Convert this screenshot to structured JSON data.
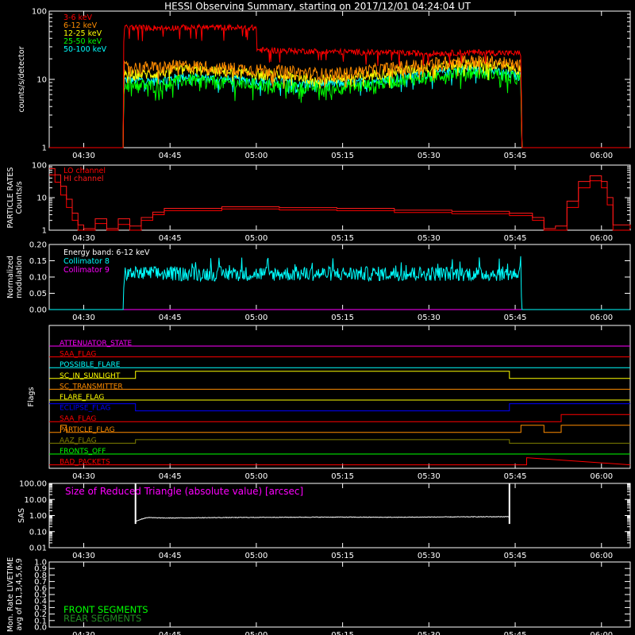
{
  "title": "HESSI Observing Summary, starting on 2017/12/01 04:24:04 UT",
  "time_axis": {
    "ticks": [
      {
        "t": 6,
        "label": "04:30"
      },
      {
        "t": 21,
        "label": "04:45"
      },
      {
        "t": 36,
        "label": "05:00"
      },
      {
        "t": 51,
        "label": "05:15"
      },
      {
        "t": 66,
        "label": "05:30"
      },
      {
        "t": 81,
        "label": "05:45"
      },
      {
        "t": 96,
        "label": "06:00"
      }
    ],
    "range_minutes": [
      0,
      101
    ]
  },
  "chart_data": [
    {
      "type": "line",
      "panel": "count-rates",
      "ylabel": "counts/s/detector",
      "yscale": "log",
      "ylim": [
        1,
        100
      ],
      "ytick_labels": [
        "1",
        "10",
        "100"
      ],
      "x_units": "minutes after 04:24:04 UT",
      "series": [
        {
          "name": "3-6 keV",
          "color": "#ff0000",
          "x": [
            0,
            12.9,
            13.0,
            18,
            27,
            36,
            36.1,
            45,
            55,
            65,
            75,
            82,
            82.1,
            101
          ],
          "y": [
            1,
            1,
            58,
            57,
            58,
            57,
            27,
            26,
            25,
            24,
            25,
            24,
            1,
            1
          ]
        },
        {
          "name": "6-12 keV",
          "color": "#ff8c00",
          "x": [
            0,
            12.9,
            13.0,
            18,
            24,
            30,
            36,
            42,
            48,
            54,
            60,
            66,
            72,
            78,
            82,
            82.1,
            101
          ],
          "y": [
            1,
            1,
            15,
            15,
            16,
            15,
            14,
            13,
            12,
            13,
            15,
            17,
            19,
            18,
            16,
            1,
            1
          ]
        },
        {
          "name": "12-25 keV",
          "color": "#ffff00",
          "x": [
            0,
            12.9,
            13.0,
            18,
            24,
            30,
            36,
            42,
            48,
            54,
            60,
            66,
            72,
            78,
            82,
            82.1,
            101
          ],
          "y": [
            1,
            1,
            12,
            12,
            14,
            13,
            12,
            11,
            10,
            11,
            13,
            15,
            17,
            16,
            14,
            1,
            1
          ]
        },
        {
          "name": "25-50 keV",
          "color": "#00ff00",
          "x": [
            0,
            12.9,
            13.0,
            18,
            24,
            30,
            36,
            42,
            48,
            54,
            60,
            66,
            72,
            78,
            82,
            82.1,
            101
          ],
          "y": [
            1,
            1,
            9,
            8,
            10,
            9,
            8.5,
            8,
            7.5,
            8,
            9.5,
            11,
            13,
            12,
            10,
            1,
            1
          ]
        },
        {
          "name": "50-100 keV",
          "color": "#00ffff",
          "x": [
            0,
            12.9,
            13.0,
            18,
            24,
            30,
            36,
            42,
            48,
            54,
            60,
            66,
            72,
            78,
            82,
            82.1,
            101
          ],
          "y": [
            1,
            1,
            10,
            9.5,
            11,
            10,
            9.5,
            9,
            8.5,
            9,
            10.5,
            12,
            14,
            13,
            11,
            1,
            1
          ]
        }
      ]
    },
    {
      "type": "line",
      "panel": "particle-rates",
      "ylabel": "PARTICLE RATES Counts/s",
      "yscale": "log",
      "ylim": [
        1,
        100
      ],
      "ytick_labels": [
        "1",
        "10",
        "100"
      ],
      "x_units": "minutes after 04:24:04 UT",
      "series": [
        {
          "name": "LO channel",
          "color": "#ff0000",
          "x": [
            0,
            1,
            2,
            3,
            4,
            5,
            6,
            8,
            10,
            12,
            14,
            16,
            18,
            20,
            30,
            40,
            50,
            60,
            70,
            80,
            84,
            86,
            88,
            90,
            92,
            94,
            96,
            97,
            98,
            101
          ],
          "y": [
            50,
            30,
            12,
            5,
            2,
            1,
            1,
            1.6,
            1,
            1.5,
            1,
            2,
            3,
            4,
            4.5,
            4.2,
            4,
            3.5,
            3.2,
            2.8,
            2,
            1,
            1,
            5,
            20,
            33,
            20,
            6,
            1,
            1
          ]
        },
        {
          "name": "HI channel",
          "color": "#ff1a1a",
          "x": [
            0,
            1,
            2,
            3,
            4,
            5,
            6,
            8,
            10,
            12,
            14,
            16,
            18,
            20,
            30,
            40,
            50,
            60,
            70,
            80,
            84,
            86,
            88,
            90,
            92,
            94,
            96,
            97,
            98,
            101
          ],
          "y": [
            70,
            45,
            20,
            8,
            3,
            1.3,
            1,
            2,
            1,
            2,
            1.2,
            2.2,
            3.2,
            4.2,
            4.7,
            4.4,
            4.2,
            3.7,
            3.4,
            3,
            2.2,
            1,
            1.2,
            7,
            28,
            42,
            28,
            9,
            1.3,
            1
          ]
        }
      ]
    },
    {
      "type": "line",
      "panel": "modulation",
      "ylabel": "Normalized modulation",
      "ylim": [
        0,
        0.2
      ],
      "ytick_labels": [
        "0.00",
        "0.05",
        "0.10",
        "0.15",
        "0.20"
      ],
      "annotation": "Energy band: 6-12 keV",
      "x_units": "minutes after 04:24:04 UT",
      "series": [
        {
          "name": "Collimator 8",
          "color": "#00ffff",
          "x": [
            0,
            12.9,
            13.0,
            30,
            50,
            70,
            81.9,
            82,
            82.1,
            101
          ],
          "y": [
            0,
            0,
            0.11,
            0.11,
            0.11,
            0.11,
            0.11,
            0.2,
            0,
            0
          ]
        },
        {
          "name": "Collimator 9",
          "color": "#ff00ff",
          "x": [
            0,
            101
          ],
          "y": [
            0,
            0
          ]
        }
      ]
    },
    {
      "type": "line",
      "panel": "flags",
      "ylabel": "Flags",
      "x_units": "minutes after 04:24:04 UT",
      "series": [
        {
          "name": "ATTENUATOR_STATE",
          "color": "#ff00ff",
          "x": [
            0,
            101
          ],
          "y": [
            0,
            0
          ]
        },
        {
          "name": "SAA_FLAG",
          "color": "#ff0000",
          "x": [
            0,
            101
          ],
          "y": [
            0,
            0
          ]
        },
        {
          "name": "POSSIBLE_FLARE",
          "color": "#00ffff",
          "x": [
            0,
            101
          ],
          "y": [
            0,
            0
          ]
        },
        {
          "name": "SC_IN_SUNLIGHT",
          "color": "#ffff00",
          "x": [
            0,
            15,
            15,
            80,
            80,
            101
          ],
          "y": [
            0,
            0,
            1,
            1,
            0,
            0
          ]
        },
        {
          "name": "SC_TRANSMITTER",
          "color": "#ff8c00",
          "x": [
            0,
            101
          ],
          "y": [
            0,
            0
          ]
        },
        {
          "name": "FLARE_FLAG",
          "color": "#ffff00",
          "x": [
            0,
            101
          ],
          "y": [
            0,
            0
          ]
        },
        {
          "name": "ECLIPSE_FLAG",
          "color": "#0000ff",
          "x": [
            0,
            15,
            15,
            80,
            80,
            101
          ],
          "y": [
            1,
            1,
            0,
            0,
            1,
            1
          ]
        },
        {
          "name": "SAA_FLAG",
          "color": "#ff0000",
          "x": [
            0,
            89,
            89,
            101
          ],
          "y": [
            0,
            0,
            1,
            1
          ]
        },
        {
          "name": "PARTICLE_FLAG",
          "color": "#ff8c00",
          "x": [
            0,
            2,
            2,
            3,
            3,
            82,
            82,
            86,
            86,
            89,
            89,
            101
          ],
          "y": [
            0,
            0,
            1,
            1,
            0,
            0,
            1,
            1,
            0,
            0,
            1,
            1
          ]
        },
        {
          "name": "AAZ_FLAG",
          "color": "#808000",
          "x": [
            0,
            15,
            15,
            80,
            80,
            101
          ],
          "y": [
            0,
            0,
            0.5,
            0.5,
            0,
            0
          ]
        },
        {
          "name": "FRONTS_OFF",
          "color": "#00ff00",
          "x": [
            0,
            101
          ],
          "y": [
            0,
            0
          ]
        },
        {
          "name": "BAD_PACKETS",
          "color": "#ff0000",
          "x": [
            0,
            83,
            83,
            101
          ],
          "y": [
            0,
            0,
            1,
            0
          ]
        }
      ]
    },
    {
      "type": "line",
      "panel": "sas",
      "ylabel": "SAS",
      "yscale": "log",
      "ylim": [
        0.01,
        100
      ],
      "ytick_labels": [
        "0.01",
        "0.10",
        "1.00",
        "10.00",
        "100.00"
      ],
      "annotation": "Size of Reduced Triangle (absolute value) [arcsec]",
      "x_units": "minutes after 04:24:04 UT",
      "series": [
        {
          "name": "SAS",
          "color": "#ffffff",
          "x": [
            15,
            15.1,
            17,
            20,
            30,
            40,
            50,
            60,
            70,
            80,
            80.1
          ],
          "y": [
            100,
            0.45,
            0.75,
            0.7,
            0.75,
            0.78,
            0.8,
            0.78,
            0.82,
            0.85,
            100
          ]
        }
      ]
    },
    {
      "type": "line",
      "panel": "livetime",
      "ylabel": "Mon. Rate LIVETIME avg of D1,3,4,5,6,9",
      "ylim": [
        0,
        1
      ],
      "ytick_labels": [
        "0.0",
        "0.1",
        "0.2",
        "0.3",
        "0.4",
        "0.5",
        "0.6",
        "0.7",
        "0.8",
        "0.9",
        "1.0"
      ],
      "x_units": "minutes after 04:24:04 UT",
      "series": [
        {
          "name": "FRONT SEGMENTS",
          "color": "#00ff00",
          "x": [],
          "y": []
        },
        {
          "name": "REAR SEGMENTS",
          "color": "#228b22",
          "x": [],
          "y": []
        }
      ]
    }
  ]
}
